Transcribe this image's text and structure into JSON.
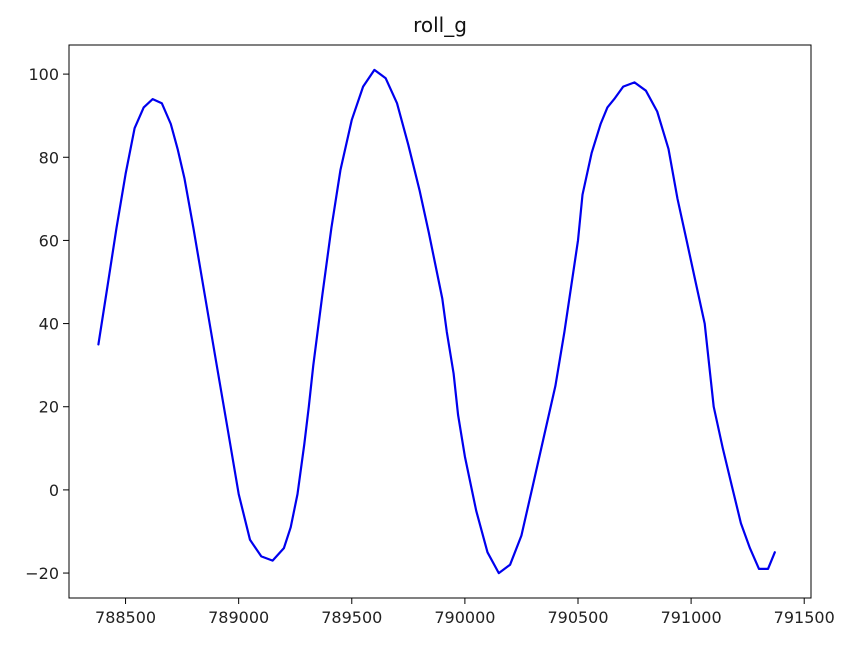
{
  "chart_data": {
    "type": "line",
    "title": "roll_g",
    "xlabel": "",
    "ylabel": "",
    "xlim": [
      788250,
      791530
    ],
    "ylim": [
      -26,
      107
    ],
    "xticks": [
      788500,
      789000,
      789500,
      790000,
      790500,
      791000,
      791500
    ],
    "yticks": [
      -20,
      0,
      20,
      40,
      60,
      80,
      100
    ],
    "grid": false,
    "series": [
      {
        "color": "#0000ee",
        "x": [
          788380,
          788420,
          788460,
          788500,
          788540,
          788580,
          788620,
          788660,
          788700,
          788730,
          788760,
          788800,
          788850,
          788900,
          788950,
          789000,
          789050,
          789100,
          789150,
          789200,
          789230,
          789260,
          789290,
          789310,
          789330,
          789370,
          789410,
          789450,
          789500,
          789550,
          789600,
          789650,
          789700,
          789750,
          789800,
          789840,
          789870,
          789900,
          789920,
          789950,
          789970,
          790000,
          790050,
          790100,
          790150,
          790200,
          790250,
          790300,
          790350,
          790400,
          790440,
          790470,
          790500,
          790520,
          790560,
          790600,
          790630,
          790660,
          790700,
          790750,
          790800,
          790850,
          790900,
          790940,
          790980,
          791020,
          791060,
          791080,
          791100,
          791140,
          791180,
          791220,
          791260,
          791300,
          791340,
          791370
        ],
        "y": [
          35,
          49,
          63,
          76,
          87,
          92,
          94,
          93,
          88,
          82,
          75,
          63,
          47,
          31,
          15,
          -1,
          -12,
          -16,
          -17,
          -14,
          -9,
          -1,
          11,
          20,
          30,
          47,
          63,
          77,
          89,
          97,
          101,
          99,
          93,
          83,
          72,
          62,
          54,
          46,
          38,
          28,
          18,
          8,
          -5,
          -15,
          -20,
          -18,
          -11,
          1,
          13,
          25,
          38,
          49,
          60,
          71,
          81,
          88,
          92,
          94,
          97,
          98,
          96,
          91,
          82,
          70,
          60,
          50,
          40,
          30,
          20,
          10,
          1,
          -8,
          -14,
          -19,
          -19,
          -15
        ]
      }
    ]
  }
}
